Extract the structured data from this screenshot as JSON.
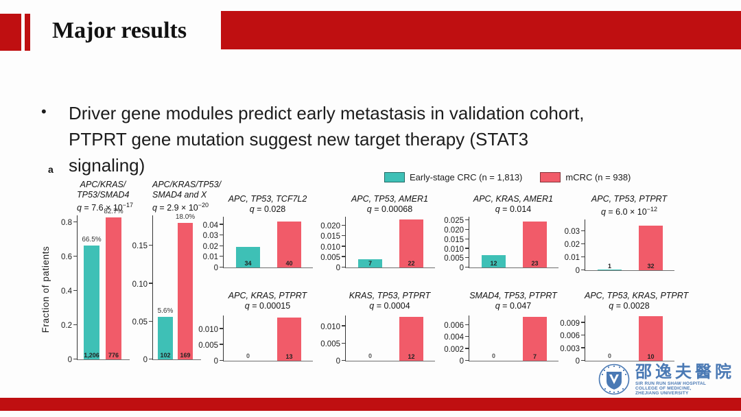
{
  "slide": {
    "header": {
      "title": "Major results"
    },
    "bullet": {
      "char": "•",
      "line1": "Driver gene modules predict early metastasis in validation cohort,",
      "line2": "PTPRT gene mutation suggest new target therapy (STAT3 signaling)"
    },
    "panel_label": "a",
    "ylabel": "Fraction of patients",
    "legend": [
      {
        "label": "Early-stage CRC (n = 1,813)",
        "color": "#3ec0b6"
      },
      {
        "label": "mCRC (n = 938)",
        "color": "#f15b69"
      }
    ],
    "logo": {
      "cn_name": "邵逸夫醫院",
      "en_lines": [
        "SIR RUN RUN SHAW HOSPITAL",
        "COLLEGE OF MEDICINE,",
        "ZHEJIANG UNIVERSITY"
      ]
    },
    "colors": {
      "accent_red": "#bf0f11",
      "logo_blue": "#4a79b4"
    }
  },
  "chart_data": [
    {
      "type": "bar",
      "title_lines": [
        "APC/KRAS/",
        "TP53/SMAD4"
      ],
      "q": {
        "var": "q",
        "rest": " = 7.6 × 10",
        "exp": "−17"
      },
      "categories": [
        "Early-stage CRC",
        "mCRC"
      ],
      "values": [
        0.665,
        0.827
      ],
      "counts": [
        "1,206",
        "776"
      ],
      "pct_labels": [
        "66.5%",
        "82.7%"
      ],
      "yticks": [
        0,
        0.2,
        0.4,
        0.6,
        0.8
      ],
      "ytick_labels": [
        "0",
        "0.2",
        "0.4",
        "0.6",
        "0.8"
      ],
      "ylabel": "Fraction of patients",
      "ylim": [
        0,
        0.84
      ]
    },
    {
      "type": "bar",
      "title_lines": [
        "APC/KRAS/TP53/",
        "SMAD4 and X"
      ],
      "q": {
        "var": "q",
        "rest": " = 2.9 × 10",
        "exp": "−20"
      },
      "categories": [
        "Early-stage CRC",
        "mCRC"
      ],
      "values": [
        0.056,
        0.18
      ],
      "counts": [
        "102",
        "169"
      ],
      "pct_labels": [
        "5.6%",
        "18.0%"
      ],
      "yticks": [
        0,
        0.05,
        0.1,
        0.15
      ],
      "ytick_labels": [
        "0",
        "0.05",
        "0.10",
        "0.15"
      ],
      "ylim": [
        0,
        0.19
      ]
    },
    {
      "type": "bar",
      "title_lines": [
        "APC, TP53, TCF7L2"
      ],
      "q": {
        "var": "q",
        "rest": " = 0.028",
        "exp": ""
      },
      "categories": [
        "Early-stage CRC",
        "mCRC"
      ],
      "values": [
        0.019,
        0.043
      ],
      "counts": [
        "34",
        "40"
      ],
      "pct_labels": null,
      "yticks": [
        0,
        0.01,
        0.02,
        0.03,
        0.04
      ],
      "ytick_labels": [
        "0",
        "0.01",
        "0.02",
        "0.03",
        "0.04"
      ],
      "ylim": [
        0,
        0.0475
      ]
    },
    {
      "type": "bar",
      "title_lines": [
        "APC, TP53, AMER1"
      ],
      "q": {
        "var": "q",
        "rest": " = 0.00068",
        "exp": ""
      },
      "categories": [
        "Early-stage CRC",
        "mCRC"
      ],
      "values": [
        0.004,
        0.023
      ],
      "counts": [
        "7",
        "22"
      ],
      "pct_labels": null,
      "yticks": [
        0,
        0.005,
        0.01,
        0.015,
        0.02
      ],
      "ytick_labels": [
        "0",
        "0.005",
        "0.010",
        "0.015",
        "0.020"
      ],
      "ylim": [
        0,
        0.0243
      ]
    },
    {
      "type": "bar",
      "title_lines": [
        "APC, KRAS, AMER1"
      ],
      "q": {
        "var": "q",
        "rest": " = 0.014",
        "exp": ""
      },
      "categories": [
        "Early-stage CRC",
        "mCRC"
      ],
      "values": [
        0.0065,
        0.0245
      ],
      "counts": [
        "12",
        "23"
      ],
      "pct_labels": null,
      "yticks": [
        0,
        0.005,
        0.01,
        0.015,
        0.02,
        0.025
      ],
      "ytick_labels": [
        "0",
        "0.005",
        "0.010",
        "0.015",
        "0.020",
        "0.025"
      ],
      "ylim": [
        0,
        0.027
      ]
    },
    {
      "type": "bar",
      "title_lines": [
        "APC, TP53, PTPRT"
      ],
      "q": {
        "var": "q",
        "rest": " = 6.0 × 10",
        "exp": "−12"
      },
      "categories": [
        "Early-stage CRC",
        "mCRC"
      ],
      "values": [
        0.0008,
        0.034
      ],
      "counts": [
        "1",
        "32"
      ],
      "pct_labels": null,
      "yticks": [
        0,
        0.01,
        0.02,
        0.03
      ],
      "ytick_labels": [
        "0",
        "0.01",
        "0.02",
        "0.03"
      ],
      "ylim": [
        0,
        0.0387
      ]
    },
    {
      "type": "bar",
      "title_lines": [
        "APC, KRAS, PTPRT"
      ],
      "q": {
        "var": "q",
        "rest": " = 0.00015",
        "exp": ""
      },
      "categories": [
        "Early-stage CRC",
        "mCRC"
      ],
      "values": [
        0,
        0.0135
      ],
      "counts": [
        "0",
        "13"
      ],
      "pct_labels": null,
      "yticks": [
        0,
        0.005,
        0.01
      ],
      "ytick_labels": [
        "0",
        "0.005",
        "0.010"
      ],
      "ylim": [
        0,
        0.0142
      ]
    },
    {
      "type": "bar",
      "title_lines": [
        "KRAS, TP53, PTPRT"
      ],
      "q": {
        "var": "q",
        "rest": " = 0.0004",
        "exp": ""
      },
      "categories": [
        "Early-stage CRC",
        "mCRC"
      ],
      "values": [
        0,
        0.0128
      ],
      "counts": [
        "0",
        "12"
      ],
      "pct_labels": null,
      "yticks": [
        0,
        0.005,
        0.01
      ],
      "ytick_labels": [
        "0",
        "0.005",
        "0.010"
      ],
      "ylim": [
        0,
        0.0131
      ]
    },
    {
      "type": "bar",
      "title_lines": [
        "SMAD4, TP53, PTPRT"
      ],
      "q": {
        "var": "q",
        "rest": " = 0.047",
        "exp": ""
      },
      "categories": [
        "Early-stage CRC",
        "mCRC"
      ],
      "values": [
        0,
        0.0074
      ],
      "counts": [
        "0",
        "7"
      ],
      "pct_labels": null,
      "yticks": [
        0,
        0.002,
        0.004,
        0.006
      ],
      "ytick_labels": [
        "0",
        "0.002",
        "0.004",
        "0.006"
      ],
      "ylim": [
        0,
        0.0076
      ]
    },
    {
      "type": "bar",
      "title_lines": [
        "APC, TP53, KRAS, PTPRT"
      ],
      "q": {
        "var": "q",
        "rest": " = 0.0028",
        "exp": ""
      },
      "categories": [
        "Early-stage CRC",
        "mCRC"
      ],
      "values": [
        0,
        0.0105
      ],
      "counts": [
        "0",
        "10"
      ],
      "pct_labels": null,
      "yticks": [
        0,
        0.003,
        0.006,
        0.009
      ],
      "ytick_labels": [
        "0",
        "0.003",
        "0.006",
        "0.009"
      ],
      "ylim": [
        0,
        0.0107
      ]
    }
  ]
}
